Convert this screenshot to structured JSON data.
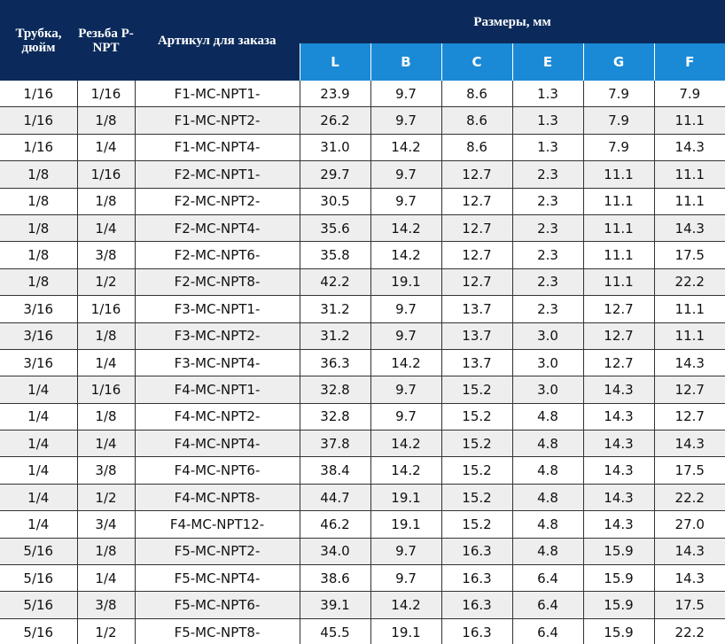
{
  "table": {
    "head": {
      "tube": "Трубка, дюйм",
      "thread": "Резьба P-NPT",
      "article": "Артикул для заказа",
      "sizes": "Размеры, мм",
      "dims": [
        "L",
        "B",
        "C",
        "E",
        "G",
        "F"
      ]
    },
    "rows": [
      [
        "1/16",
        "1/16",
        "F1-MC-NPT1-",
        "23.9",
        "9.7",
        "8.6",
        "1.3",
        "7.9",
        "7.9"
      ],
      [
        "1/16",
        "1/8",
        "F1-MC-NPT2-",
        "26.2",
        "9.7",
        "8.6",
        "1.3",
        "7.9",
        "11.1"
      ],
      [
        "1/16",
        "1/4",
        "F1-MC-NPT4-",
        "31.0",
        "14.2",
        "8.6",
        "1.3",
        "7.9",
        "14.3"
      ],
      [
        "1/8",
        "1/16",
        "F2-MC-NPT1-",
        "29.7",
        "9.7",
        "12.7",
        "2.3",
        "11.1",
        "11.1"
      ],
      [
        "1/8",
        "1/8",
        "F2-MC-NPT2-",
        "30.5",
        "9.7",
        "12.7",
        "2.3",
        "11.1",
        "11.1"
      ],
      [
        "1/8",
        "1/4",
        "F2-MC-NPT4-",
        "35.6",
        "14.2",
        "12.7",
        "2.3",
        "11.1",
        "14.3"
      ],
      [
        "1/8",
        "3/8",
        "F2-MC-NPT6-",
        "35.8",
        "14.2",
        "12.7",
        "2.3",
        "11.1",
        "17.5"
      ],
      [
        "1/8",
        "1/2",
        "F2-MC-NPT8-",
        "42.2",
        "19.1",
        "12.7",
        "2.3",
        "11.1",
        "22.2"
      ],
      [
        "3/16",
        "1/16",
        "F3-MC-NPT1-",
        "31.2",
        "9.7",
        "13.7",
        "2.3",
        "12.7",
        "11.1"
      ],
      [
        "3/16",
        "1/8",
        "F3-MC-NPT2-",
        "31.2",
        "9.7",
        "13.7",
        "3.0",
        "12.7",
        "11.1"
      ],
      [
        "3/16",
        "1/4",
        "F3-MC-NPT4-",
        "36.3",
        "14.2",
        "13.7",
        "3.0",
        "12.7",
        "14.3"
      ],
      [
        "1/4",
        "1/16",
        "F4-MC-NPT1-",
        "32.8",
        "9.7",
        "15.2",
        "3.0",
        "14.3",
        "12.7"
      ],
      [
        "1/4",
        "1/8",
        "F4-MC-NPT2-",
        "32.8",
        "9.7",
        "15.2",
        "4.8",
        "14.3",
        "12.7"
      ],
      [
        "1/4",
        "1/4",
        "F4-MC-NPT4-",
        "37.8",
        "14.2",
        "15.2",
        "4.8",
        "14.3",
        "14.3"
      ],
      [
        "1/4",
        "3/8",
        "F4-MC-NPT6-",
        "38.4",
        "14.2",
        "15.2",
        "4.8",
        "14.3",
        "17.5"
      ],
      [
        "1/4",
        "1/2",
        "F4-MC-NPT8-",
        "44.7",
        "19.1",
        "15.2",
        "4.8",
        "14.3",
        "22.2"
      ],
      [
        "1/4",
        "3/4",
        "F4-MC-NPT12-",
        "46.2",
        "19.1",
        "15.2",
        "4.8",
        "14.3",
        "27.0"
      ],
      [
        "5/16",
        "1/8",
        "F5-MC-NPT2-",
        "34.0",
        "9.7",
        "16.3",
        "4.8",
        "15.9",
        "14.3"
      ],
      [
        "5/16",
        "1/4",
        "F5-MC-NPT4-",
        "38.6",
        "9.7",
        "16.3",
        "6.4",
        "15.9",
        "14.3"
      ],
      [
        "5/16",
        "3/8",
        "F5-MC-NPT6-",
        "39.1",
        "14.2",
        "16.3",
        "6.4",
        "15.9",
        "17.5"
      ],
      [
        "5/16",
        "1/2",
        "F5-MC-NPT8-",
        "45.5",
        "19.1",
        "16.3",
        "6.4",
        "15.9",
        "22.2"
      ]
    ]
  }
}
